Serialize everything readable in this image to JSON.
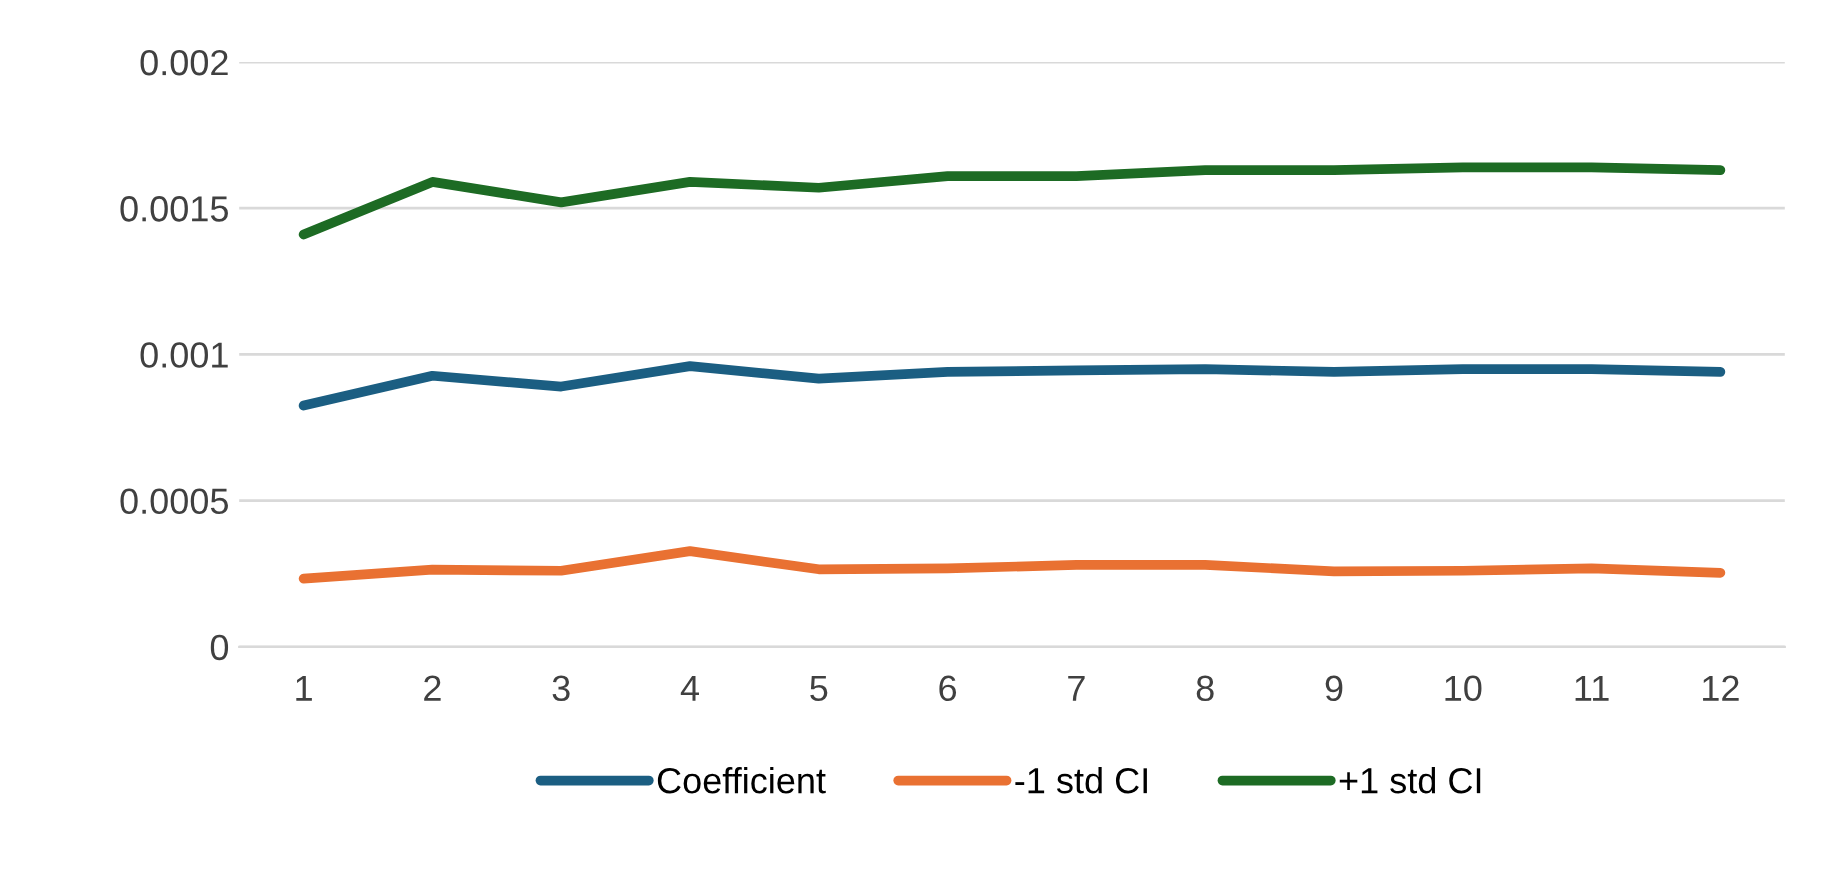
{
  "chart_data": {
    "type": "line",
    "categories": [
      "1",
      "2",
      "3",
      "4",
      "5",
      "6",
      "7",
      "8",
      "9",
      "10",
      "11",
      "12"
    ],
    "series": [
      {
        "name": "Coefficient",
        "color": "#1b5e82",
        "values": [
          0.000825,
          0.000927,
          0.00089,
          0.00096,
          0.000917,
          0.00094,
          0.000945,
          0.00095,
          0.00094,
          0.00095,
          0.00095,
          0.00094
        ]
      },
      {
        "name": "-1 std CI",
        "color": "#e97132",
        "values": [
          0.000233,
          0.000264,
          0.00026,
          0.000327,
          0.000265,
          0.000268,
          0.00028,
          0.00028,
          0.000258,
          0.00026,
          0.000268,
          0.000253
        ]
      },
      {
        "name": "+1 std CI",
        "color": "#1d6b24",
        "values": [
          0.00141,
          0.00159,
          0.00152,
          0.00159,
          0.00157,
          0.00161,
          0.00161,
          0.00163,
          0.00163,
          0.00164,
          0.00164,
          0.00163
        ]
      }
    ],
    "ylim": [
      0,
      0.002
    ],
    "yticks": [
      0,
      0.0005,
      0.001,
      0.0015,
      0.002
    ],
    "grid": "y",
    "legend": "bottom",
    "marker": "none",
    "line_style": "solid"
  }
}
